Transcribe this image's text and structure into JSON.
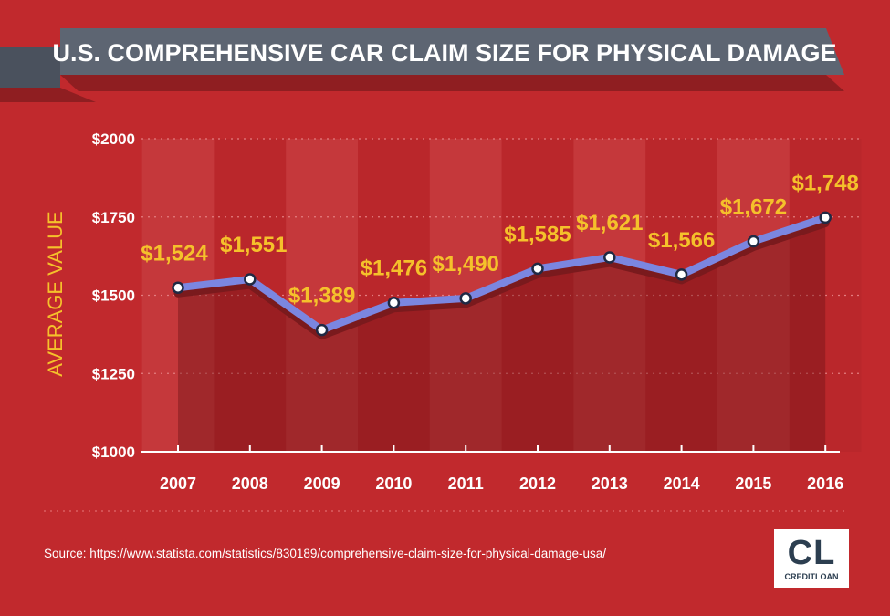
{
  "title": "U.S. COMPREHENSIVE CAR CLAIM SIZE FOR PHYSICAL DAMAGE",
  "source": "Source: https://www.statista.com/statistics/830189/comprehensive-claim-size-for-physical-damage-usa/",
  "logo": {
    "mark": "CL",
    "name": "CREDITLOAN"
  },
  "colors": {
    "background": "#c1292d",
    "line": "#7b86e0",
    "label": "#f5c12b",
    "banner": "#5d6572"
  },
  "chart_data": {
    "type": "line",
    "title": "U.S. COMPREHENSIVE CAR CLAIM SIZE FOR PHYSICAL DAMAGE",
    "ylabel": "AVERAGE VALUE",
    "xlabel": "",
    "categories": [
      "2007",
      "2008",
      "2009",
      "2010",
      "2011",
      "2012",
      "2013",
      "2014",
      "2015",
      "2016"
    ],
    "values": [
      1524,
      1551,
      1389,
      1476,
      1490,
      1585,
      1621,
      1566,
      1672,
      1748
    ],
    "data_labels": [
      "$1,524",
      "$1,551",
      "$1,389",
      "$1,476",
      "$1,490",
      "$1,585",
      "$1,621",
      "$1,566",
      "$1,672",
      "$1,748"
    ],
    "ylim": [
      1000,
      2000
    ],
    "yticks": [
      1000,
      1250,
      1500,
      1750,
      2000
    ],
    "ytick_labels": [
      "$1000",
      "$1250",
      "$1500",
      "$1750",
      "$2000"
    ],
    "grid": true,
    "area_fill": true
  }
}
